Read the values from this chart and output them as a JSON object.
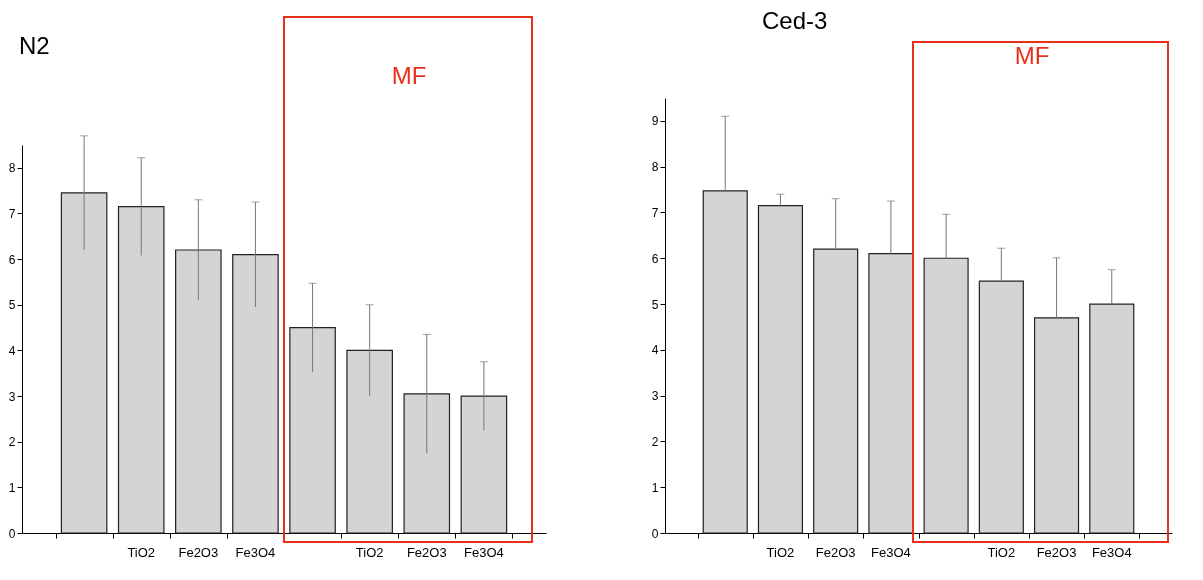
{
  "chart_data": [
    {
      "type": "bar",
      "title": "N2",
      "categories": [
        null,
        "TiO2",
        "Fe2O3",
        "Fe3O4",
        null,
        "TiO2",
        "Fe2O3",
        "Fe3O4"
      ],
      "values": [
        7.45,
        7.15,
        6.2,
        6.1,
        4.5,
        4.0,
        3.05,
        3.0
      ],
      "errors": [
        1.25,
        1.07,
        1.1,
        1.15,
        0.97,
        1.0,
        1.3,
        0.75
      ],
      "color": "#d4d4d4",
      "ylim": [
        0,
        8.5
      ],
      "yticks": [
        0,
        1,
        2,
        3,
        4,
        5,
        6,
        7,
        8
      ],
      "annotations": [
        "MF"
      ]
    },
    {
      "type": "bar",
      "title": "Ced-3",
      "categories": [
        null,
        "TiO2",
        "Fe2O3",
        "Fe3O4",
        null,
        "TiO2",
        "Fe2O3",
        "Fe3O4"
      ],
      "values": [
        7.47,
        7.15,
        6.2,
        6.1,
        6.0,
        5.5,
        4.7,
        5.0
      ],
      "errors": [
        [
          7.47,
          9.1
        ],
        [
          7.15,
          7.4
        ],
        [
          6.2,
          7.3
        ],
        [
          6.1,
          7.25
        ],
        [
          6.0,
          6.96
        ],
        [
          5.5,
          6.22
        ],
        [
          4.7,
          6.01
        ],
        [
          5.0,
          5.75
        ]
      ],
      "color": "#d4d4d4",
      "ylim": [
        0,
        9.5
      ],
      "yticks": [
        0,
        1,
        2,
        3,
        4,
        5,
        6,
        7,
        8,
        9
      ],
      "annotations": [
        "MF"
      ]
    }
  ]
}
